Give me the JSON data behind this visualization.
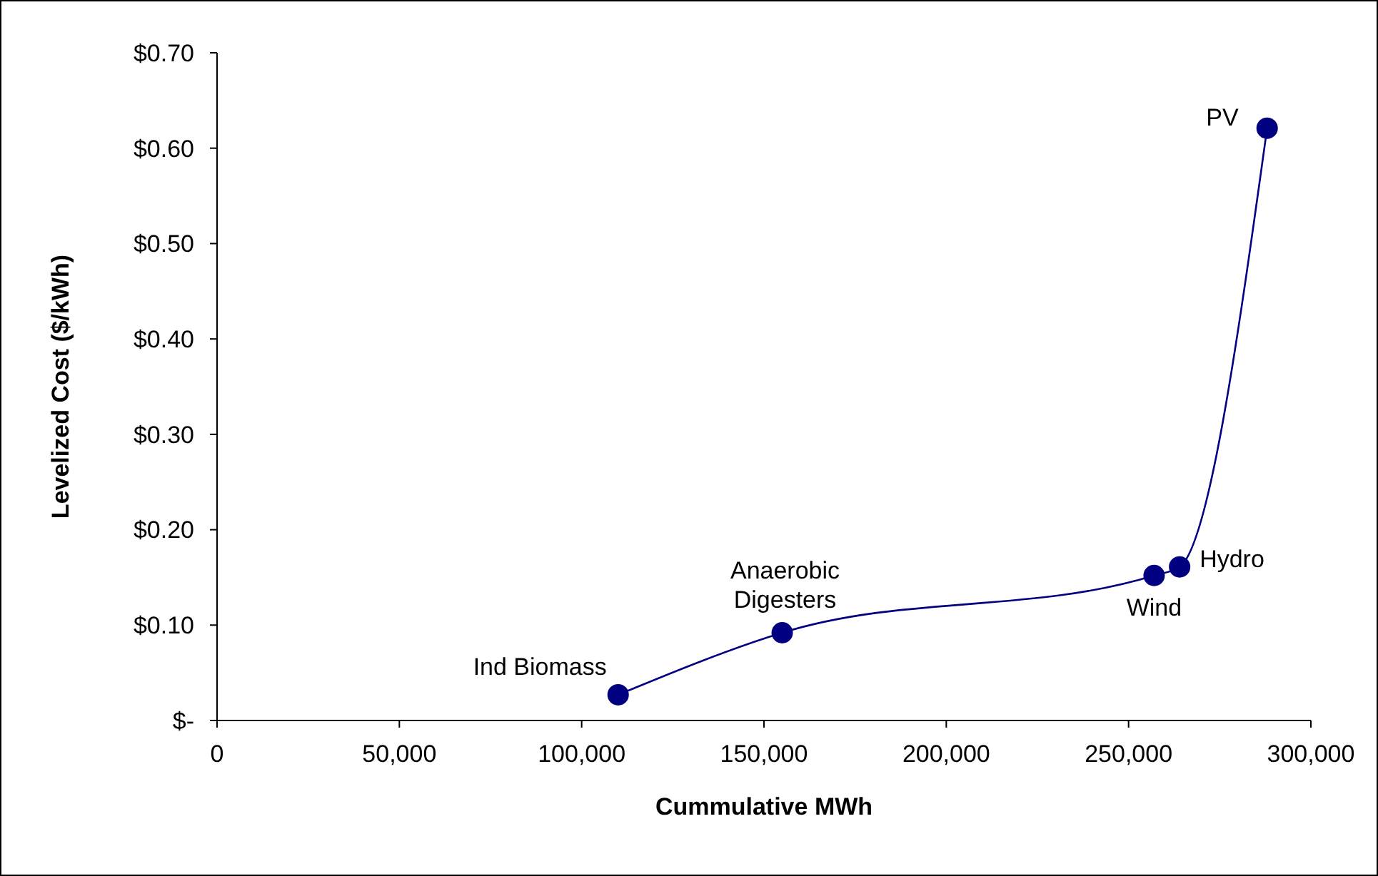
{
  "chart_data": {
    "type": "line",
    "xlabel": "Cummulative MWh",
    "ylabel": "Levelized Cost ($/kWh)",
    "x": [
      110000,
      155000,
      257000,
      264000,
      288000
    ],
    "series": [
      {
        "color": "#000080",
        "values": [
          0.027,
          0.092,
          0.152,
          0.161,
          0.621
        ]
      }
    ],
    "xlim": [
      0,
      300000
    ],
    "xticks": [
      0,
      {
        "value": 50000,
        "label": "50,000"
      },
      {
        "value": 100000,
        "label": "100,000"
      },
      {
        "value": 150000,
        "label": "150,000"
      },
      {
        "value": 200000,
        "label": "200,000"
      },
      {
        "value": 250000,
        "label": "250,000"
      },
      {
        "value": 300000,
        "label": "300,000"
      }
    ],
    "ylim": [
      0,
      0.7
    ],
    "yticks": [
      {
        "value": 0,
        "label": "$-"
      },
      {
        "value": 0.1,
        "label": "$0.10"
      },
      {
        "value": 0.2,
        "label": "$0.20"
      },
      {
        "value": 0.3,
        "label": "$0.30"
      },
      {
        "value": 0.4,
        "label": "$0.40"
      },
      {
        "value": 0.5,
        "label": "$0.50"
      },
      {
        "value": 0.6,
        "label": "$0.60"
      },
      {
        "value": 0.7,
        "label": "$0.70"
      }
    ],
    "annotations": [
      {
        "text": "Ind Biomass",
        "x": 110000,
        "y": 0.027
      },
      {
        "text": "Anaerobic Digesters",
        "x": 155000,
        "y": 0.092
      },
      {
        "text": "Wind",
        "x": 257000,
        "y": 0.152
      },
      {
        "text": "Hydro",
        "x": 264000,
        "y": 0.161
      },
      {
        "text": "PV",
        "x": 288000,
        "y": 0.621
      }
    ],
    "marker": "circle",
    "line_style": "solid",
    "grid": false
  }
}
